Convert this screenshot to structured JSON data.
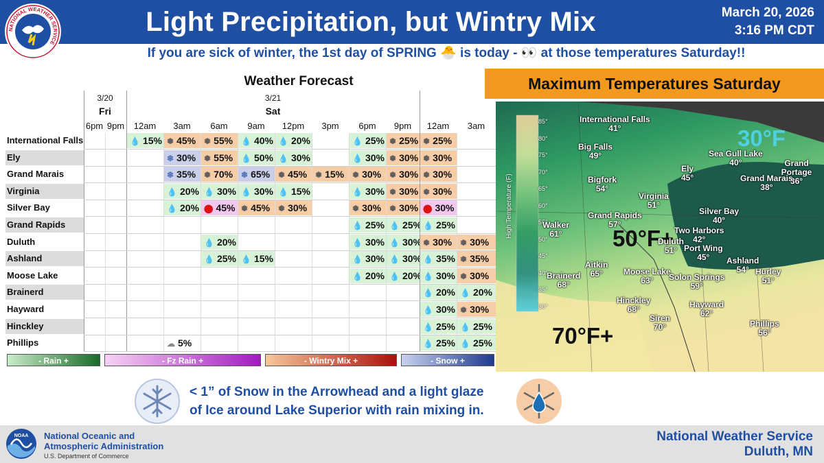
{
  "header": {
    "logo_text": "NATIONAL WEATHER SERVICE",
    "title": "Light Precipitation, but Wintry Mix",
    "date": "March 20, 2026",
    "time": "3:16 PM CDT",
    "subtitle": "If you are sick of winter, the 1st day of SPRING 🐣 is today - 👀 at those temperatures Saturday!!"
  },
  "forecast": {
    "title": "Weather Forecast",
    "days": [
      {
        "date": "3/20",
        "name": "Fri"
      },
      {
        "date": "3/21",
        "name": "Sat"
      }
    ],
    "hours": [
      "6pm",
      "9pm",
      "12am",
      "3am",
      "6am",
      "9am",
      "12pm",
      "3pm",
      "6pm",
      "9pm",
      "12am",
      "3am"
    ],
    "rows": [
      {
        "name": "International Falls",
        "cells": [
          null,
          null,
          [
            "rain",
            "15%"
          ],
          [
            "mix",
            "45%"
          ],
          [
            "mix",
            "55%"
          ],
          [
            "rain",
            "40%"
          ],
          [
            "rain",
            "20%"
          ],
          null,
          [
            "rain",
            "25%"
          ],
          [
            "mix",
            "25%"
          ],
          [
            "mix",
            "25%"
          ],
          null
        ]
      },
      {
        "name": "Ely",
        "cells": [
          null,
          null,
          null,
          [
            "snow",
            "30%"
          ],
          [
            "mix",
            "55%"
          ],
          [
            "rain",
            "50%"
          ],
          [
            "rain",
            "30%"
          ],
          null,
          [
            "rain",
            "30%"
          ],
          [
            "mix",
            "30%"
          ],
          [
            "mix",
            "30%"
          ],
          null
        ]
      },
      {
        "name": "Grand Marais",
        "cells": [
          null,
          null,
          null,
          [
            "snow",
            "35%"
          ],
          [
            "mix",
            "70%"
          ],
          [
            "snow",
            "65%"
          ],
          [
            "mix",
            "45%"
          ],
          [
            "mix",
            "15%"
          ],
          [
            "mix",
            "30%"
          ],
          [
            "mix",
            "30%"
          ],
          [
            "mix",
            "30%"
          ],
          null
        ]
      },
      {
        "name": "Virginia",
        "cells": [
          null,
          null,
          null,
          [
            "rain",
            "20%"
          ],
          [
            "rain",
            "30%"
          ],
          [
            "rain",
            "30%"
          ],
          [
            "rain",
            "15%"
          ],
          null,
          [
            "rain",
            "30%"
          ],
          [
            "mix",
            "30%"
          ],
          [
            "mix",
            "30%"
          ],
          null
        ]
      },
      {
        "name": "Silver Bay",
        "cells": [
          null,
          null,
          null,
          [
            "rain",
            "20%"
          ],
          [
            "fz",
            "45%"
          ],
          [
            "mix",
            "45%"
          ],
          [
            "mix",
            "30%"
          ],
          null,
          [
            "mix",
            "30%"
          ],
          [
            "mix",
            "30%"
          ],
          [
            "fz",
            "30%"
          ],
          null
        ]
      },
      {
        "name": "Grand Rapids",
        "cells": [
          null,
          null,
          null,
          null,
          null,
          null,
          null,
          null,
          [
            "rain",
            "25%"
          ],
          [
            "rain",
            "25%"
          ],
          [
            "rain",
            "25%"
          ],
          null
        ]
      },
      {
        "name": "Duluth",
        "cells": [
          null,
          null,
          null,
          null,
          [
            "rain",
            "20%"
          ],
          null,
          null,
          null,
          [
            "rain",
            "30%"
          ],
          [
            "rain",
            "30%"
          ],
          [
            "mix",
            "30%"
          ],
          [
            "mix",
            "30%"
          ]
        ]
      },
      {
        "name": "Ashland",
        "cells": [
          null,
          null,
          null,
          null,
          [
            "rain",
            "25%"
          ],
          [
            "rain",
            "15%"
          ],
          null,
          null,
          [
            "rain",
            "30%"
          ],
          [
            "rain",
            "30%"
          ],
          [
            "rain",
            "35%"
          ],
          [
            "mix",
            "35%"
          ]
        ]
      },
      {
        "name": "Moose Lake",
        "cells": [
          null,
          null,
          null,
          null,
          null,
          null,
          null,
          null,
          [
            "rain",
            "20%"
          ],
          [
            "rain",
            "20%"
          ],
          [
            "rain",
            "30%"
          ],
          [
            "mix",
            "30%"
          ]
        ]
      },
      {
        "name": "Brainerd",
        "cells": [
          null,
          null,
          null,
          null,
          null,
          null,
          null,
          null,
          null,
          null,
          [
            "rain",
            "20%"
          ],
          [
            "rain",
            "20%"
          ]
        ]
      },
      {
        "name": "Hayward",
        "cells": [
          null,
          null,
          null,
          null,
          null,
          null,
          null,
          null,
          null,
          null,
          [
            "rain",
            "30%"
          ],
          [
            "mix",
            "30%"
          ]
        ]
      },
      {
        "name": "Hinckley",
        "cells": [
          null,
          null,
          null,
          null,
          null,
          null,
          null,
          null,
          null,
          null,
          [
            "rain",
            "25%"
          ],
          [
            "rain",
            "25%"
          ]
        ]
      },
      {
        "name": "Phillips",
        "cells": [
          null,
          null,
          null,
          [
            "cloud",
            "5%"
          ],
          null,
          null,
          null,
          null,
          null,
          null,
          [
            "rain",
            "25%"
          ],
          [
            "rain",
            "25%"
          ]
        ]
      }
    ],
    "legend": {
      "rain": "- Rain +",
      "fz": "- Fz Rain +",
      "mix": "- Wintry Mix +",
      "snow": "- Snow +"
    },
    "icons": {
      "rain": "raindrop-icon",
      "snow": "snowflake-icon",
      "mix": "wintry-mix-icon",
      "fz": "freezing-rain-icon",
      "cloud": "cloud-icon"
    }
  },
  "map": {
    "title": "Maximum Temperatures Saturday",
    "scale_label": "High Temperature (F)",
    "scale_ticks": [
      "85°",
      "80°",
      "75°",
      "70°",
      "65°",
      "60°",
      "55°",
      "50°",
      "45°",
      "40°",
      "35°",
      "30°"
    ],
    "big_labels": {
      "cold": "30°F",
      "mid": "50°F+",
      "warm": "70°F+"
    },
    "cities": [
      {
        "name": "International Falls",
        "temp": "41°"
      },
      {
        "name": "Big Falls",
        "temp": "49°"
      },
      {
        "name": "Sea Gull Lake",
        "temp": "40°"
      },
      {
        "name": "Grand Portage",
        "temp": "36°"
      },
      {
        "name": "Ely",
        "temp": "45°"
      },
      {
        "name": "Grand Marais",
        "temp": "38°"
      },
      {
        "name": "Bigfork",
        "temp": "54°"
      },
      {
        "name": "Virginia",
        "temp": "51°"
      },
      {
        "name": "Silver Bay",
        "temp": "40°"
      },
      {
        "name": "Walker",
        "temp": "61°"
      },
      {
        "name": "Grand Rapids",
        "temp": "57°"
      },
      {
        "name": "Two Harbors",
        "temp": "42°"
      },
      {
        "name": "Duluth",
        "temp": "51°"
      },
      {
        "name": "Port Wing",
        "temp": "45°"
      },
      {
        "name": "Ashland",
        "temp": "54°"
      },
      {
        "name": "Hurley",
        "temp": "51°"
      },
      {
        "name": "Aitkin",
        "temp": "65°"
      },
      {
        "name": "Brainerd",
        "temp": "68°"
      },
      {
        "name": "Moose Lake",
        "temp": "63°"
      },
      {
        "name": "Solon Springs",
        "temp": "59°"
      },
      {
        "name": "Hinckley",
        "temp": "68°"
      },
      {
        "name": "Hayward",
        "temp": "62°"
      },
      {
        "name": "Siren",
        "temp": "70°"
      },
      {
        "name": "Phillips",
        "temp": "56°"
      }
    ],
    "colors": {
      "cold": "#3a3a3a",
      "lake": "#1e5a4a",
      "green": "#3cb36a",
      "yellow": "#f2e7a3",
      "big_cold": "#4fd0e0"
    }
  },
  "callout": {
    "line1": "< 1” of Snow in the Arrowhead and a light glaze",
    "line2": "of Ice around Lake Superior with rain mixing in."
  },
  "footer": {
    "noaa_line1": "National Oceanic and",
    "noaa_line2": "Atmospheric Administration",
    "noaa_dept": "U.S. Department of Commerce",
    "nws_line1": "National Weather Service",
    "nws_line2": "Duluth, MN",
    "noaa_logo_text": "NOAA"
  }
}
